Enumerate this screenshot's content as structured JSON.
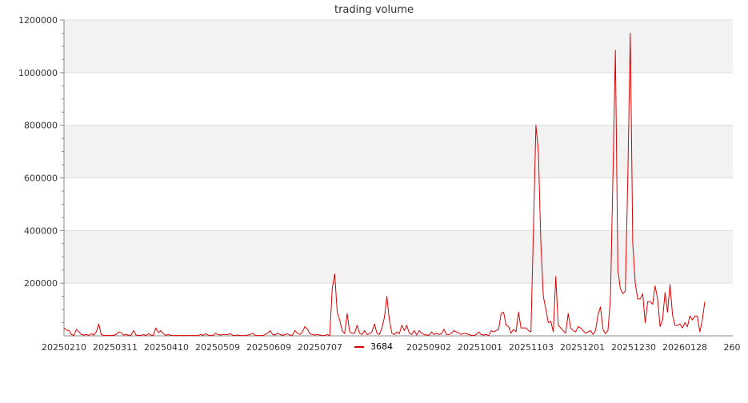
{
  "chart_data": {
    "type": "line",
    "title": "trading volume",
    "xlabel": "",
    "ylabel": "",
    "ylim": [
      0,
      1200000
    ],
    "yticks": [
      200000,
      400000,
      600000,
      800000,
      1000000,
      1200000
    ],
    "ytick_labels": [
      "200000",
      "400000",
      "600000",
      "800000",
      "1000000",
      "1200000"
    ],
    "xticks": [
      "20250210",
      "20250311",
      "20250410",
      "20250509",
      "20250609",
      "20250707",
      "20250902",
      "20251001",
      "20251103",
      "20251201",
      "20251230",
      "20260128",
      "260"
    ],
    "grid": true,
    "legend_position": "bottom",
    "colors": {
      "series": "#dd0000",
      "band": "#f2f2f2",
      "grid": "#dddddd",
      "axis": "#888888",
      "text": "#333333"
    },
    "series": [
      {
        "name": "3684",
        "values": [
          30000,
          22000,
          20000,
          5000,
          2000,
          25000,
          15000,
          5000,
          3000,
          5000,
          2000,
          8000,
          3000,
          15000,
          45000,
          5000,
          2000,
          1000,
          1000,
          1000,
          2000,
          5000,
          15000,
          12000,
          3000,
          5000,
          2000,
          3000,
          20000,
          3000,
          2000,
          1000,
          5000,
          1000,
          8000,
          3000,
          2000,
          30000,
          12000,
          20000,
          8000,
          2000,
          5000,
          2000,
          1000,
          1000,
          1000,
          1000,
          1000,
          1000,
          1000,
          1000,
          1000,
          1000,
          1000,
          5000,
          2000,
          8000,
          3000,
          1000,
          1000,
          10000,
          5000,
          3000,
          5000,
          5000,
          5000,
          8000,
          2000,
          1000,
          3000,
          1000,
          1000,
          1000,
          3000,
          5000,
          10000,
          1000,
          1000,
          1000,
          1000,
          5000,
          10000,
          20000,
          5000,
          3000,
          10000,
          5000,
          2000,
          5000,
          8000,
          2000,
          3000,
          20000,
          10000,
          5000,
          15000,
          35000,
          25000,
          8000,
          5000,
          3000,
          5000,
          3000,
          1000,
          1000,
          5000,
          1000,
          180000,
          235000,
          90000,
          60000,
          20000,
          8000,
          85000,
          15000,
          10000,
          10000,
          40000,
          10000,
          5000,
          20000,
          5000,
          8000,
          15000,
          45000,
          10000,
          5000,
          30000,
          70000,
          150000,
          60000,
          10000,
          5000,
          15000,
          8000,
          40000,
          20000,
          40000,
          10000,
          5000,
          20000,
          3000,
          20000,
          10000,
          5000,
          3000,
          2000,
          15000,
          5000,
          10000,
          5000,
          8000,
          25000,
          5000,
          5000,
          10000,
          20000,
          15000,
          10000,
          5000,
          10000,
          8000,
          5000,
          2000,
          1000,
          5000,
          15000,
          5000,
          3000,
          5000,
          1000,
          20000,
          15000,
          20000,
          25000,
          85000,
          90000,
          40000,
          35000,
          10000,
          25000,
          15000,
          90000,
          30000,
          30000,
          30000,
          20000,
          15000,
          400000,
          800000,
          700000,
          350000,
          150000,
          100000,
          50000,
          55000,
          15000,
          225000,
          40000,
          30000,
          20000,
          10000,
          85000,
          30000,
          20000,
          15000,
          35000,
          30000,
          20000,
          10000,
          15000,
          20000,
          5000,
          20000,
          80000,
          110000,
          25000,
          8000,
          20000,
          140000,
          600000,
          1085000,
          250000,
          180000,
          160000,
          170000,
          600000,
          1150000,
          350000,
          200000,
          140000,
          140000,
          160000,
          50000,
          130000,
          130000,
          120000,
          190000,
          140000,
          35000,
          60000,
          165000,
          90000,
          195000,
          80000,
          40000,
          40000,
          45000,
          30000,
          50000,
          35000,
          75000,
          60000,
          75000,
          75000,
          15000,
          60000,
          130000
        ]
      }
    ]
  }
}
